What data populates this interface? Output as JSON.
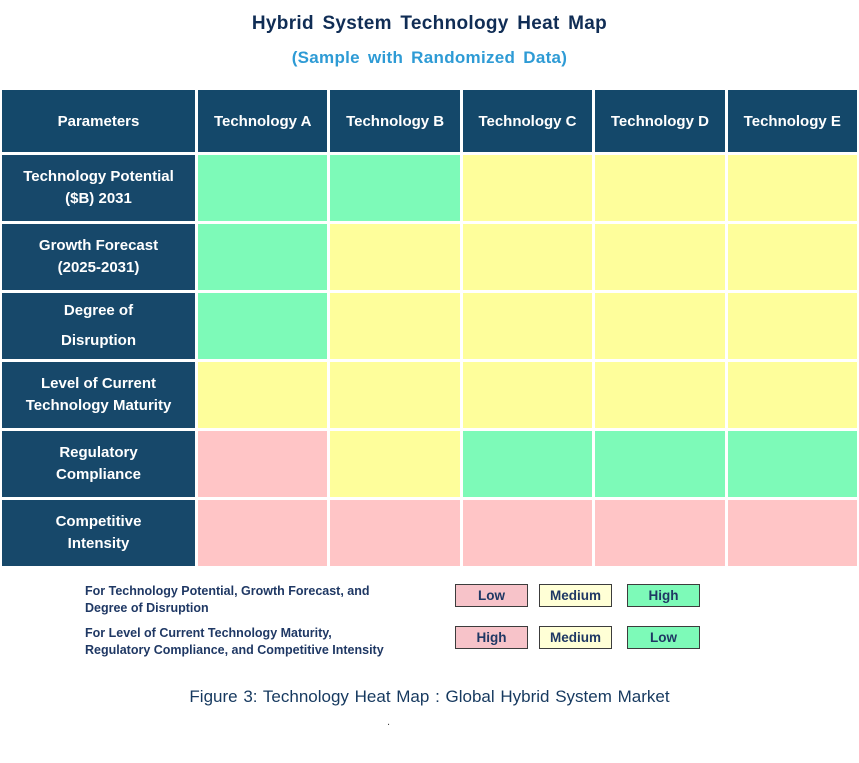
{
  "title": "Hybrid System Technology Heat Map",
  "subtitle": "(Sample with Randomized Data)",
  "colors": {
    "header_bg": "#14486A",
    "param_bg": "#17486A",
    "green": "#7DFAB8",
    "yellow": "#FEFE9B",
    "pink": "#FFC5C6",
    "legend_pink": "#F7C3C9",
    "legend_cream": "#FFFFD6",
    "legend_green": "#7DFAB8",
    "title_navy": "#102D55",
    "subtitle_blue": "#2E9BD5",
    "legend_text": "#1F3864",
    "caption_blue": "#16395F"
  },
  "table": {
    "columns": [
      "Parameters",
      "Technology A",
      "Technology B",
      "Technology C",
      "Technology D",
      "Technology E"
    ],
    "rows": [
      {
        "label": "Technology Potential ($B) 2031",
        "label_lines": [
          "Technology Potential",
          "($B) 2031"
        ],
        "cells": [
          "green",
          "green",
          "yellow",
          "yellow",
          "yellow"
        ]
      },
      {
        "label": "Growth Forecast (2025-2031)",
        "label_lines": [
          "Growth Forecast",
          "(2025-2031)"
        ],
        "cells": [
          "green",
          "yellow",
          "yellow",
          "yellow",
          "yellow"
        ]
      },
      {
        "label": "Degree of Disruption",
        "label_lines": [
          "Degree of",
          "Disruption"
        ],
        "cells": [
          "green",
          "yellow",
          "yellow",
          "yellow",
          "yellow"
        ]
      },
      {
        "label": "Level of Current Technology Maturity",
        "label_lines": [
          "Level of Current",
          "Technology Maturity"
        ],
        "cells": [
          "yellow",
          "yellow",
          "yellow",
          "yellow",
          "yellow"
        ]
      },
      {
        "label": "Regulatory Compliance",
        "label_lines": [
          "Regulatory",
          "Compliance"
        ],
        "cells": [
          "pink",
          "yellow",
          "green",
          "green",
          "green"
        ]
      },
      {
        "label": "Competitive Intensity",
        "label_lines": [
          "Competitive",
          "Intensity"
        ],
        "cells": [
          "pink",
          "pink",
          "pink",
          "pink",
          "pink"
        ]
      }
    ]
  },
  "legend": {
    "rows": [
      {
        "label_lines": [
          "For Technology Potential, Growth Forecast, and",
          "Degree of Disruption"
        ],
        "boxes": [
          {
            "text": "Low",
            "color": "legend_pink"
          },
          {
            "text": "Medium",
            "color": "legend_cream"
          },
          {
            "text": "High",
            "color": "legend_green"
          }
        ]
      },
      {
        "label_lines": [
          "For Level of Current Technology Maturity,",
          "Regulatory Compliance, and Competitive Intensity"
        ],
        "boxes": [
          {
            "text": "High",
            "color": "legend_pink"
          },
          {
            "text": "Medium",
            "color": "legend_cream"
          },
          {
            "text": "Low",
            "color": "legend_green"
          }
        ]
      }
    ]
  },
  "caption": "Figure 3: Technology Heat Map : Global Hybrid System Market",
  "footnote": ".",
  "chart_data": {
    "type": "heatmap",
    "title": "Hybrid System Technology Heat Map",
    "subtitle": "(Sample with Randomized Data)",
    "x_labels": [
      "Technology A",
      "Technology B",
      "Technology C",
      "Technology D",
      "Technology E"
    ],
    "y_labels": [
      "Technology Potential ($B) 2031",
      "Growth Forecast (2025-2031)",
      "Degree of Disruption",
      "Level of Current Technology Maturity",
      "Regulatory Compliance",
      "Competitive Intensity"
    ],
    "cell_colors": [
      [
        "green",
        "green",
        "yellow",
        "yellow",
        "yellow"
      ],
      [
        "green",
        "yellow",
        "yellow",
        "yellow",
        "yellow"
      ],
      [
        "green",
        "yellow",
        "yellow",
        "yellow",
        "yellow"
      ],
      [
        "yellow",
        "yellow",
        "yellow",
        "yellow",
        "yellow"
      ],
      [
        "pink",
        "yellow",
        "green",
        "green",
        "green"
      ],
      [
        "pink",
        "pink",
        "pink",
        "pink",
        "pink"
      ]
    ],
    "cell_ratings": [
      [
        "High",
        "High",
        "Medium",
        "Medium",
        "Medium"
      ],
      [
        "High",
        "Medium",
        "Medium",
        "Medium",
        "Medium"
      ],
      [
        "High",
        "Medium",
        "Medium",
        "Medium",
        "Medium"
      ],
      [
        "Medium",
        "Medium",
        "Medium",
        "Medium",
        "Medium"
      ],
      [
        "High",
        "Medium",
        "Low",
        "Low",
        "Low"
      ],
      [
        "High",
        "High",
        "High",
        "High",
        "High"
      ]
    ],
    "color_scales": [
      {
        "applies_to": "For Technology Potential, Growth Forecast, and Degree of Disruption",
        "pink": "Low",
        "yellow": "Medium",
        "green": "High"
      },
      {
        "applies_to": "For Level of Current Technology Maturity, Regulatory Compliance, and Competitive Intensity",
        "pink": "High",
        "yellow": "Medium",
        "green": "Low"
      }
    ],
    "legend_position": "bottom",
    "caption": "Figure 3: Technology Heat Map : Global Hybrid System Market"
  }
}
